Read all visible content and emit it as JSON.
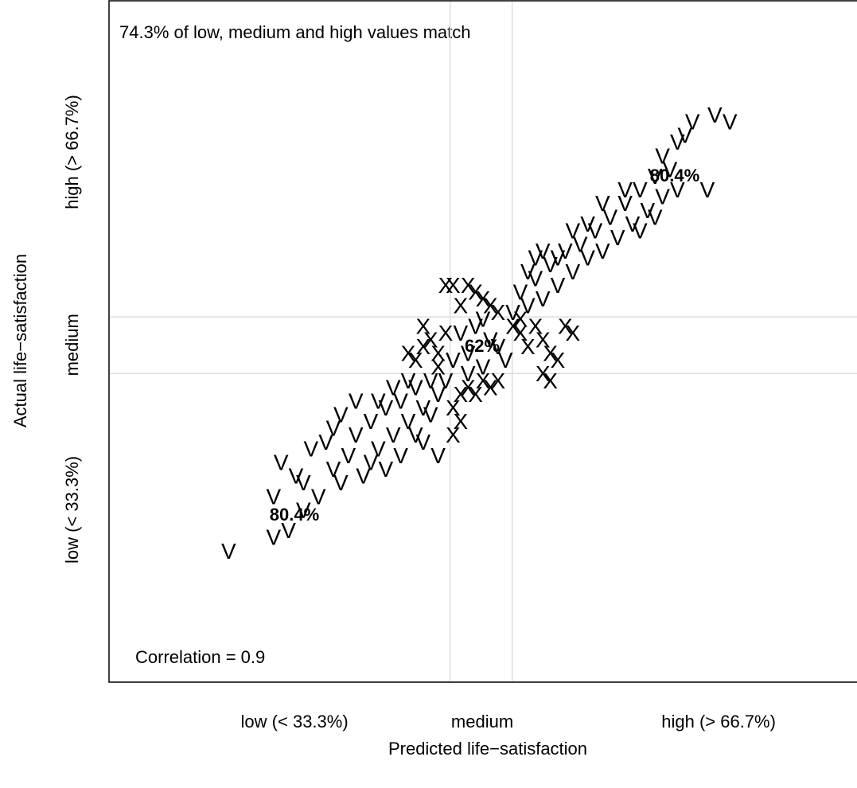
{
  "chart_data": {
    "type": "scatter",
    "x_label": "Predicted life−satisfaction",
    "y_label": "Actual life−satisfaction",
    "annotation": "74.3% of low, medium and high values match",
    "correlation_label": "Correlation = 0.9",
    "cell_labels": [
      "80.4%",
      "62%",
      "80.4%"
    ],
    "xlim": [
      0,
      100
    ],
    "ylim": [
      0,
      100
    ],
    "xticks": [
      {
        "value": 24.8,
        "label": "low (< 33.3%)"
      },
      {
        "value": 49.9,
        "label": "medium"
      },
      {
        "value": 81.5,
        "label": "high (> 66.7%)"
      }
    ],
    "yticks": [
      {
        "value": 25.3,
        "label": "low (< 33.3%)"
      },
      {
        "value": 49.5,
        "label": "medium"
      },
      {
        "value": 77.8,
        "label": "high (> 66.7%)"
      }
    ],
    "x_thresholds": [
      45.6,
      53.9
    ],
    "y_thresholds": [
      45.3,
      53.6
    ],
    "threshold_color": "#dddddd",
    "series": [
      {
        "marker": "V",
        "color": "#55d8f7",
        "x": [
          16,
          22,
          24,
          26,
          22,
          23,
          25,
          28,
          30,
          27,
          29,
          31,
          32,
          33,
          34,
          35,
          36,
          30,
          37,
          38,
          39,
          40,
          41,
          42,
          40,
          43,
          44,
          38,
          36,
          42,
          44,
          39,
          35,
          33,
          41,
          45,
          43,
          26,
          31,
          37,
          46,
          48,
          50,
          52,
          47,
          49,
          51,
          53,
          48,
          50,
          54,
          55,
          56,
          57,
          58,
          59,
          60,
          61,
          62,
          63,
          64,
          65,
          66,
          67,
          68,
          69,
          70,
          71,
          72,
          73,
          74,
          75,
          74,
          76,
          77,
          78,
          81,
          83,
          76,
          73,
          66,
          64,
          60,
          57,
          62,
          69,
          80,
          56,
          58,
          71
        ],
        "y": [
          19,
          21,
          22,
          25,
          27,
          32,
          30,
          27,
          31,
          34,
          35,
          29,
          33,
          36,
          30,
          38,
          34,
          37,
          40,
          36,
          41,
          38,
          43,
          40,
          44,
          39,
          42,
          43,
          41,
          35,
          33,
          33,
          32,
          41,
          36,
          44,
          44,
          29,
          39,
          31,
          47,
          48,
          46,
          49,
          51,
          52,
          50,
          47,
          45,
          53,
          54,
          57,
          55,
          59,
          56,
          61,
          58,
          63,
          60,
          64,
          62,
          66,
          63,
          68,
          65,
          70,
          67,
          72,
          69,
          74,
          71,
          75,
          77,
          79,
          80,
          82,
          83,
          82,
          72,
          68,
          70,
          67,
          62,
          62,
          66,
          72,
          72,
          60,
          63,
          66
        ]
      },
      {
        "marker": "X",
        "color": "#fb6544",
        "x": [
          40,
          41,
          42,
          43,
          44,
          45,
          44,
          42,
          45,
          46,
          48,
          49,
          51,
          52,
          50,
          47,
          46,
          47,
          48,
          49,
          50,
          51,
          47,
          46,
          52,
          54,
          55,
          57,
          58,
          59,
          61,
          60,
          56,
          58,
          55,
          62,
          59
        ],
        "y": [
          48,
          47,
          49,
          50,
          48,
          51,
          46,
          52,
          58,
          58,
          58,
          57,
          55,
          54,
          56,
          55,
          40,
          42,
          43,
          42,
          44,
          43,
          38,
          36,
          44,
          52,
          51,
          52,
          50,
          48,
          52,
          47,
          49,
          45,
          53,
          51,
          44
        ]
      }
    ]
  }
}
